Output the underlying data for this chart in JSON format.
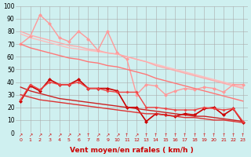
{
  "xlabel": "Vent moyen/en rafales ( km/h )",
  "background_color": "#cff0f0",
  "grid_color": "#aaaaaa",
  "xlim": [
    -0.5,
    23.5
  ],
  "ylim": [
    0,
    100
  ],
  "yticks": [
    0,
    10,
    20,
    30,
    40,
    50,
    60,
    70,
    80,
    90,
    100
  ],
  "xticks": [
    0,
    1,
    2,
    3,
    4,
    5,
    6,
    7,
    8,
    9,
    10,
    11,
    12,
    13,
    14,
    15,
    16,
    17,
    18,
    19,
    20,
    21,
    22,
    23
  ],
  "series": [
    {
      "x": [
        0,
        1,
        2,
        3,
        4,
        5,
        6,
        7,
        8,
        9,
        10,
        11,
        12,
        13,
        14,
        15,
        16,
        17,
        18,
        19,
        20,
        21,
        22,
        23
      ],
      "y": [
        78,
        75,
        73,
        71,
        69,
        67,
        66,
        65,
        64,
        63,
        62,
        60,
        58,
        56,
        54,
        52,
        50,
        48,
        46,
        44,
        42,
        40,
        38,
        36
      ],
      "color": "#ffbbbb",
      "linewidth": 1.0,
      "marker": null
    },
    {
      "x": [
        0,
        1,
        2,
        3,
        4,
        5,
        6,
        7,
        8,
        9,
        10,
        11,
        12,
        13,
        14,
        15,
        16,
        17,
        18,
        19,
        20,
        21,
        22,
        23
      ],
      "y": [
        70,
        76,
        93,
        86,
        75,
        72,
        80,
        74,
        65,
        80,
        63,
        58,
        30,
        38,
        37,
        30,
        33,
        35,
        34,
        36,
        35,
        32,
        38,
        38
      ],
      "color": "#ff9999",
      "linewidth": 1.0,
      "marker": "D",
      "markersize": 2.5
    },
    {
      "x": [
        0,
        1,
        2,
        3,
        4,
        5,
        6,
        7,
        8,
        9,
        10,
        11,
        12,
        13,
        14,
        15,
        16,
        17,
        18,
        19,
        20,
        21,
        22,
        23
      ],
      "y": [
        80,
        77,
        75,
        73,
        71,
        69,
        68,
        66,
        65,
        63,
        62,
        60,
        58,
        56,
        53,
        51,
        49,
        47,
        45,
        43,
        41,
        39,
        37,
        35
      ],
      "color": "#ffaaaa",
      "linewidth": 1.0,
      "marker": null
    },
    {
      "x": [
        0,
        1,
        2,
        3,
        4,
        5,
        6,
        7,
        8,
        9,
        10,
        11,
        12,
        13,
        14,
        15,
        16,
        17,
        18,
        19,
        20,
        21,
        22,
        23
      ],
      "y": [
        70,
        67,
        65,
        63,
        61,
        59,
        58,
        56,
        55,
        53,
        52,
        50,
        48,
        46,
        43,
        41,
        39,
        37,
        35,
        33,
        31,
        29,
        27,
        25
      ],
      "color": "#ff7777",
      "linewidth": 1.0,
      "marker": null
    },
    {
      "x": [
        0,
        1,
        2,
        3,
        4,
        5,
        6,
        7,
        8,
        9,
        10,
        11,
        12,
        13,
        14,
        15,
        16,
        17,
        18,
        19,
        20,
        21,
        22,
        23
      ],
      "y": [
        25,
        37,
        33,
        42,
        38,
        38,
        42,
        35,
        35,
        35,
        33,
        20,
        20,
        9,
        15,
        14,
        13,
        15,
        14,
        19,
        20,
        14,
        19,
        8
      ],
      "color": "#cc0000",
      "linewidth": 1.2,
      "marker": "D",
      "markersize": 2.5
    },
    {
      "x": [
        0,
        1,
        2,
        3,
        4,
        5,
        6,
        7,
        8,
        9,
        10,
        11,
        12,
        13,
        14,
        15,
        16,
        17,
        18,
        19,
        20,
        21,
        22,
        23
      ],
      "y": [
        36,
        33,
        31,
        29,
        27,
        26,
        25,
        24,
        23,
        22,
        21,
        20,
        19,
        18,
        17,
        16,
        15,
        14,
        13,
        13,
        12,
        11,
        10,
        9
      ],
      "color": "#cc2222",
      "linewidth": 1.0,
      "marker": null
    },
    {
      "x": [
        0,
        1,
        2,
        3,
        4,
        5,
        6,
        7,
        8,
        9,
        10,
        11,
        12,
        13,
        14,
        15,
        16,
        17,
        18,
        19,
        20,
        21,
        22,
        23
      ],
      "y": [
        26,
        38,
        34,
        40,
        38,
        38,
        40,
        35,
        35,
        33,
        32,
        32,
        32,
        20,
        20,
        19,
        18,
        18,
        18,
        20,
        19,
        18,
        19,
        9
      ],
      "color": "#ee4444",
      "linewidth": 1.0,
      "marker": "D",
      "markersize": 2.0
    },
    {
      "x": [
        0,
        1,
        2,
        3,
        4,
        5,
        6,
        7,
        8,
        9,
        10,
        11,
        12,
        13,
        14,
        15,
        16,
        17,
        18,
        19,
        20,
        21,
        22,
        23
      ],
      "y": [
        30,
        28,
        26,
        25,
        24,
        23,
        22,
        21,
        20,
        19,
        18,
        17,
        16,
        15,
        15,
        14,
        13,
        12,
        12,
        11,
        10,
        10,
        9,
        8
      ],
      "color": "#dd3333",
      "linewidth": 1.0,
      "marker": null
    }
  ],
  "arrow_chars": [
    "↗",
    "↗",
    "↗",
    "↗",
    "↗",
    "↗",
    "↗",
    "↑",
    "↗",
    "↗",
    "↗",
    "↑",
    "↗",
    "↑",
    "↑",
    "↑",
    "↑",
    "↑",
    "↑",
    "↑",
    "↑",
    "↑",
    "↑",
    "↑"
  ]
}
